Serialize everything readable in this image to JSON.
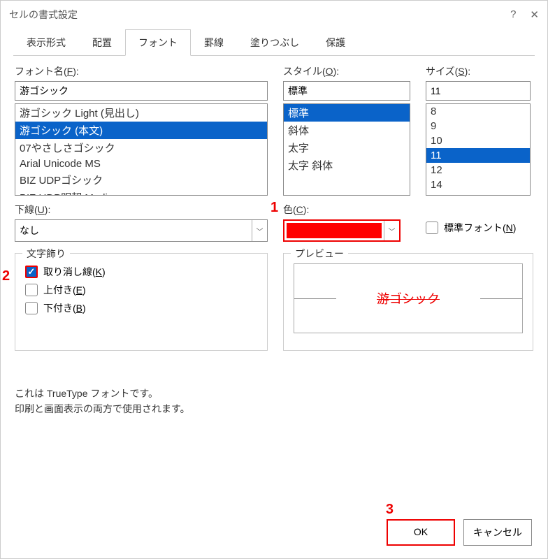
{
  "dialog": {
    "title": "セルの書式設定"
  },
  "tabs": [
    "表示形式",
    "配置",
    "フォント",
    "罫線",
    "塗りつぶし",
    "保護"
  ],
  "activeTab": 2,
  "font": {
    "nameLabel": "フォント名(",
    "nameKey": "F",
    "nameLabelEnd": "):",
    "value": "游ゴシック",
    "list": [
      "游ゴシック Light (見出し)",
      "游ゴシック (本文)",
      "07やさしさゴシック",
      "Arial Unicode MS",
      "BIZ UDPゴシック",
      "BIZ UDP明朝 Medium"
    ],
    "selectedIndex": 1
  },
  "style": {
    "label": "スタイル(",
    "key": "O",
    "labelEnd": "):",
    "value": "標準",
    "list": [
      "標準",
      "斜体",
      "太字",
      "太字 斜体"
    ],
    "selectedIndex": 0
  },
  "size": {
    "label": "サイズ(",
    "key": "S",
    "labelEnd": "):",
    "value": "11",
    "list": [
      "8",
      "9",
      "10",
      "11",
      "12",
      "14"
    ],
    "selectedIndex": 3
  },
  "underline": {
    "label": "下線(",
    "key": "U",
    "labelEnd": "):",
    "value": "なし"
  },
  "color": {
    "label": "色(",
    "key": "C",
    "labelEnd": "):",
    "value": "#ff0000"
  },
  "normalFont": {
    "label": "標準フォント(",
    "key": "N",
    "labelEnd": ")",
    "checked": false
  },
  "effects": {
    "legend": "文字飾り",
    "strike": {
      "label": "取り消し線(",
      "key": "K",
      "labelEnd": ")",
      "checked": true
    },
    "super": {
      "label": "上付き(",
      "key": "E",
      "labelEnd": ")",
      "checked": false
    },
    "sub": {
      "label": "下付き(",
      "key": "B",
      "labelEnd": ")",
      "checked": false
    }
  },
  "preview": {
    "legend": "プレビュー",
    "text": "游ゴシック"
  },
  "footnote1": "これは TrueType フォントです。",
  "footnote2": "印刷と画面表示の両方で使用されます。",
  "buttons": {
    "ok": "OK",
    "cancel": "キャンセル"
  },
  "callouts": {
    "c1": "1",
    "c2": "2",
    "c3": "3"
  },
  "colors": {
    "highlight": "#e00000",
    "select": "#0a63c9"
  }
}
